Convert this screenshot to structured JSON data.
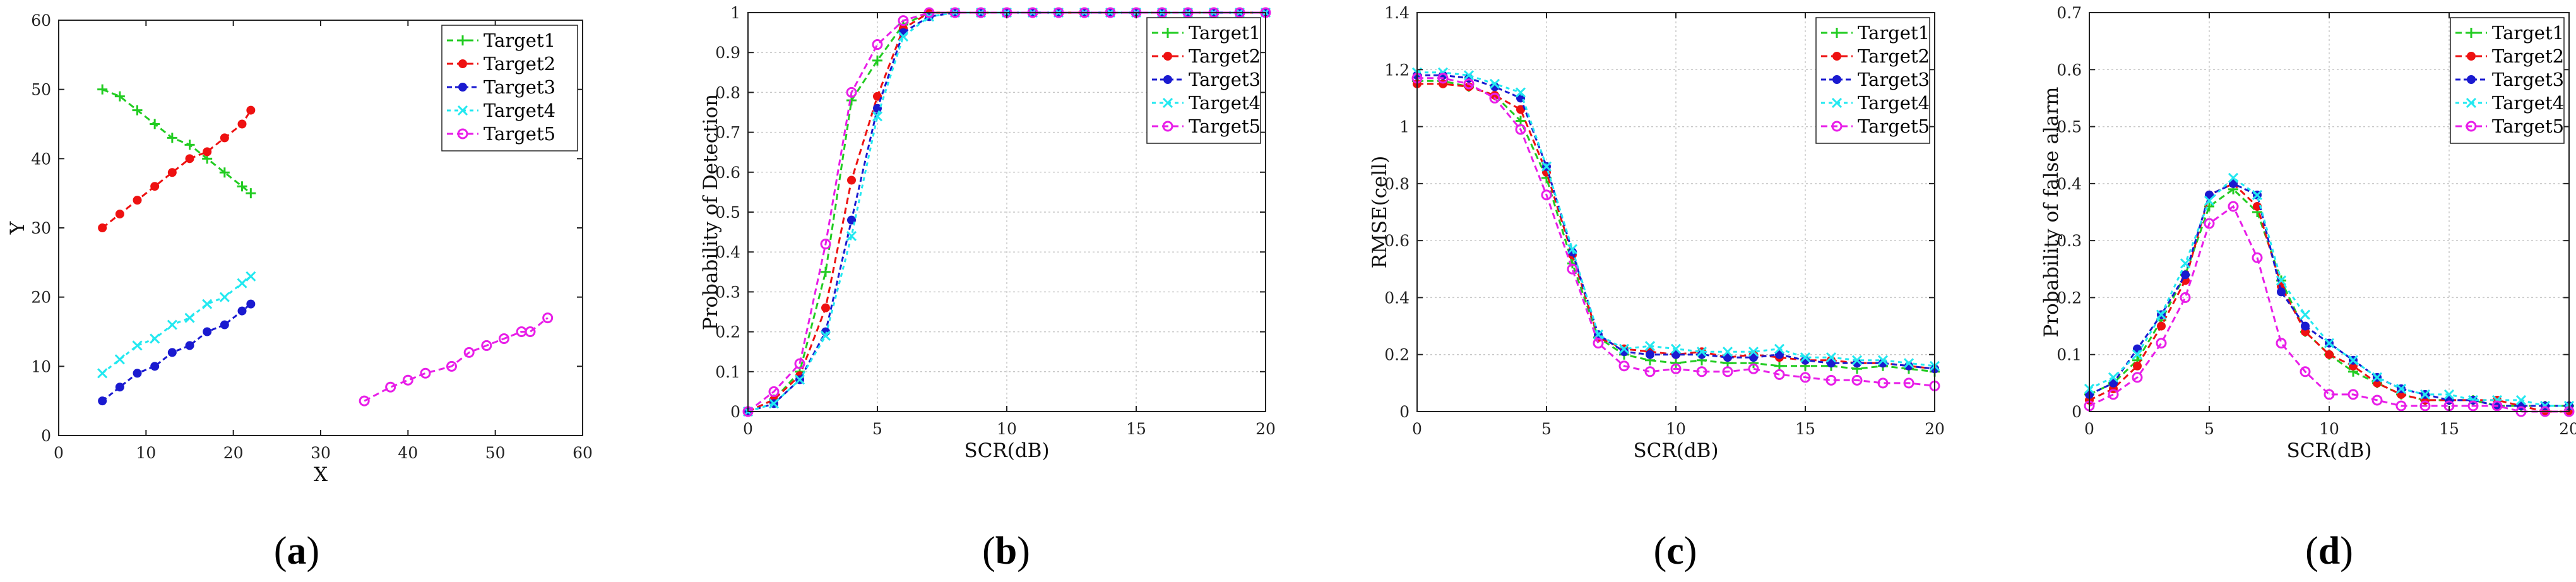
{
  "colors": {
    "Target1": "#22cc22",
    "Target2": "#ee1111",
    "Target3": "#1a1ad0",
    "Target4": "#22e8f0",
    "Target5": "#e81ee8"
  },
  "chart_data": [
    {
      "type": "line",
      "id": "a",
      "label_open": "(",
      "label_letter": "a",
      "label_close": ")",
      "xlabel": "X",
      "ylabel": "Y",
      "xlim": [
        0,
        60
      ],
      "ylim": [
        0,
        60
      ],
      "xticks": [
        "0",
        "10",
        "20",
        "30",
        "40",
        "50",
        "60"
      ],
      "yticks": [
        "0",
        "10",
        "20",
        "30",
        "40",
        "50",
        "60"
      ],
      "grid": false,
      "legend": "top-right",
      "series": [
        {
          "name": "Target1",
          "marker": "plus",
          "x": [
            5,
            7,
            9,
            11,
            13,
            15,
            17,
            19,
            21,
            22
          ],
          "y": [
            50,
            49,
            47,
            45,
            43,
            42,
            40,
            38,
            36,
            35
          ]
        },
        {
          "name": "Target2",
          "marker": "dot",
          "x": [
            5,
            7,
            9,
            11,
            13,
            15,
            17,
            19,
            21,
            22
          ],
          "y": [
            30,
            32,
            34,
            36,
            38,
            40,
            41,
            43,
            45,
            47
          ]
        },
        {
          "name": "Target3",
          "marker": "dot",
          "x": [
            5,
            7,
            9,
            11,
            13,
            15,
            17,
            19,
            21,
            22
          ],
          "y": [
            5,
            7,
            9,
            10,
            12,
            13,
            15,
            16,
            18,
            19
          ]
        },
        {
          "name": "Target4",
          "marker": "x",
          "x": [
            5,
            7,
            9,
            11,
            13,
            15,
            17,
            19,
            21,
            22
          ],
          "y": [
            9,
            11,
            13,
            14,
            16,
            17,
            19,
            20,
            22,
            23
          ]
        },
        {
          "name": "Target5",
          "marker": "circle",
          "x": [
            35,
            38,
            40,
            42,
            45,
            47,
            49,
            51,
            53,
            54,
            56
          ],
          "y": [
            5,
            7,
            8,
            9,
            10,
            12,
            13,
            14,
            15,
            15,
            17
          ]
        }
      ]
    },
    {
      "type": "line",
      "id": "b",
      "label_open": "(",
      "label_letter": "b",
      "label_close": ")",
      "xlabel": "SCR(dB)",
      "ylabel": "Probability of Detection",
      "xlim": [
        0,
        20
      ],
      "ylim": [
        0,
        1
      ],
      "xticks": [
        "0",
        "5",
        "10",
        "15",
        "20"
      ],
      "yticks": [
        "0",
        "0.1",
        "0.2",
        "0.3",
        "0.4",
        "0.5",
        "0.6",
        "0.7",
        "0.8",
        "0.9",
        "1"
      ],
      "grid": true,
      "legend": "top-right",
      "x": [
        0,
        1,
        2,
        3,
        4,
        5,
        6,
        7,
        8,
        9,
        10,
        11,
        12,
        13,
        14,
        15,
        16,
        17,
        18,
        19,
        20
      ],
      "series": [
        {
          "name": "Target1",
          "marker": "plus",
          "values": [
            0,
            0.03,
            0.1,
            0.35,
            0.78,
            0.88,
            0.97,
            1,
            1,
            1,
            1,
            1,
            1,
            1,
            1,
            1,
            1,
            1,
            1,
            1,
            1
          ]
        },
        {
          "name": "Target2",
          "marker": "dot",
          "values": [
            0,
            0.03,
            0.09,
            0.26,
            0.58,
            0.79,
            0.96,
            1,
            1,
            1,
            1,
            1,
            1,
            1,
            1,
            1,
            1,
            1,
            1,
            1,
            1
          ]
        },
        {
          "name": "Target3",
          "marker": "dot",
          "values": [
            0,
            0.02,
            0.08,
            0.2,
            0.48,
            0.76,
            0.95,
            0.99,
            1,
            1,
            1,
            1,
            1,
            1,
            1,
            1,
            1,
            1,
            1,
            1,
            1
          ]
        },
        {
          "name": "Target4",
          "marker": "x",
          "values": [
            0,
            0.02,
            0.08,
            0.19,
            0.44,
            0.74,
            0.94,
            0.99,
            1,
            1,
            1,
            1,
            1,
            1,
            1,
            1,
            1,
            1,
            1,
            1,
            1
          ]
        },
        {
          "name": "Target5",
          "marker": "circle",
          "values": [
            0,
            0.05,
            0.12,
            0.42,
            0.8,
            0.92,
            0.98,
            1,
            1,
            1,
            1,
            1,
            1,
            1,
            1,
            1,
            1,
            1,
            1,
            1,
            1
          ]
        }
      ]
    },
    {
      "type": "line",
      "id": "c",
      "label_open": "(",
      "label_letter": "c",
      "label_close": ")",
      "xlabel": "SCR(dB)",
      "ylabel": "RMSE(cell)",
      "xlim": [
        0,
        20
      ],
      "ylim": [
        0,
        1.4
      ],
      "xticks": [
        "0",
        "5",
        "10",
        "15",
        "20"
      ],
      "yticks": [
        "0",
        "0.2",
        "0.4",
        "0.6",
        "0.8",
        "1",
        "1.2",
        "1.4"
      ],
      "grid": true,
      "legend": "top-right",
      "x": [
        0,
        1,
        2,
        3,
        4,
        5,
        6,
        7,
        8,
        9,
        10,
        11,
        12,
        13,
        14,
        15,
        16,
        17,
        18,
        19,
        20
      ],
      "series": [
        {
          "name": "Target1",
          "marker": "plus",
          "values": [
            1.16,
            1.16,
            1.14,
            1.11,
            1.02,
            0.82,
            0.52,
            0.26,
            0.2,
            0.18,
            0.17,
            0.18,
            0.17,
            0.17,
            0.16,
            0.16,
            0.16,
            0.15,
            0.16,
            0.15,
            0.14
          ]
        },
        {
          "name": "Target2",
          "marker": "dot",
          "values": [
            1.15,
            1.15,
            1.14,
            1.11,
            1.06,
            0.84,
            0.55,
            0.26,
            0.22,
            0.21,
            0.2,
            0.21,
            0.19,
            0.2,
            0.19,
            0.18,
            0.18,
            0.17,
            0.17,
            0.16,
            0.15
          ]
        },
        {
          "name": "Target3",
          "marker": "dot",
          "values": [
            1.18,
            1.18,
            1.17,
            1.14,
            1.1,
            0.86,
            0.56,
            0.27,
            0.21,
            0.2,
            0.2,
            0.2,
            0.19,
            0.19,
            0.2,
            0.18,
            0.17,
            0.17,
            0.17,
            0.16,
            0.15
          ]
        },
        {
          "name": "Target4",
          "marker": "x",
          "values": [
            1.19,
            1.19,
            1.18,
            1.15,
            1.12,
            0.86,
            0.57,
            0.27,
            0.22,
            0.23,
            0.22,
            0.21,
            0.21,
            0.21,
            0.22,
            0.19,
            0.19,
            0.18,
            0.18,
            0.17,
            0.16
          ]
        },
        {
          "name": "Target5",
          "marker": "circle",
          "values": [
            1.17,
            1.17,
            1.15,
            1.1,
            0.99,
            0.76,
            0.5,
            0.24,
            0.16,
            0.14,
            0.15,
            0.14,
            0.14,
            0.15,
            0.13,
            0.12,
            0.11,
            0.11,
            0.1,
            0.1,
            0.09
          ]
        }
      ]
    },
    {
      "type": "line",
      "id": "d",
      "label_open": "(",
      "label_letter": "d",
      "label_close": ")",
      "xlabel": "SCR(dB)",
      "ylabel": "Probability of false alarm",
      "xlim": [
        0,
        20
      ],
      "ylim": [
        0,
        0.7
      ],
      "xticks": [
        "0",
        "5",
        "10",
        "15",
        "20"
      ],
      "yticks": [
        "0",
        "0.1",
        "0.2",
        "0.3",
        "0.4",
        "0.5",
        "0.6",
        "0.7"
      ],
      "grid": true,
      "legend": "top-right",
      "x": [
        0,
        1,
        2,
        3,
        4,
        5,
        6,
        7,
        8,
        9,
        10,
        11,
        12,
        13,
        14,
        15,
        16,
        17,
        18,
        19,
        20
      ],
      "series": [
        {
          "name": "Target1",
          "marker": "plus",
          "values": [
            0.03,
            0.05,
            0.09,
            0.16,
            0.24,
            0.36,
            0.39,
            0.35,
            0.23,
            0.14,
            0.1,
            0.07,
            0.05,
            0.03,
            0.02,
            0.02,
            0.02,
            0.01,
            0.01,
            0.01,
            0.01
          ]
        },
        {
          "name": "Target2",
          "marker": "dot",
          "values": [
            0.02,
            0.04,
            0.08,
            0.15,
            0.23,
            0.38,
            0.4,
            0.36,
            0.22,
            0.14,
            0.1,
            0.08,
            0.05,
            0.03,
            0.02,
            0.02,
            0.02,
            0.02,
            0.01,
            0,
            0
          ]
        },
        {
          "name": "Target3",
          "marker": "dot",
          "values": [
            0.03,
            0.05,
            0.11,
            0.17,
            0.24,
            0.38,
            0.4,
            0.38,
            0.21,
            0.15,
            0.12,
            0.09,
            0.06,
            0.04,
            0.03,
            0.02,
            0.02,
            0.01,
            0.01,
            0.01,
            0.01
          ]
        },
        {
          "name": "Target4",
          "marker": "x",
          "values": [
            0.04,
            0.06,
            0.1,
            0.17,
            0.26,
            0.37,
            0.41,
            0.38,
            0.23,
            0.17,
            0.12,
            0.09,
            0.06,
            0.04,
            0.03,
            0.03,
            0.02,
            0.02,
            0.02,
            0.01,
            0.01
          ]
        },
        {
          "name": "Target5",
          "marker": "circle",
          "values": [
            0.01,
            0.03,
            0.06,
            0.12,
            0.2,
            0.33,
            0.36,
            0.27,
            0.12,
            0.07,
            0.03,
            0.03,
            0.02,
            0.01,
            0.01,
            0.01,
            0.01,
            0.01,
            0,
            0,
            0
          ]
        }
      ]
    }
  ]
}
